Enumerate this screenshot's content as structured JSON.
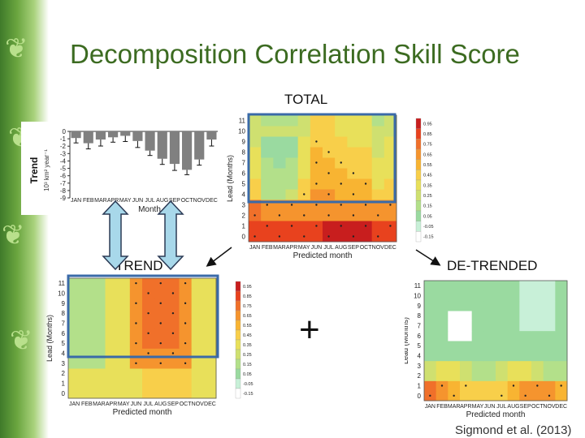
{
  "slide": {
    "title": "Decomposition Correlation Skill Score",
    "label_total": "TOTAL",
    "label_trend": "TREND",
    "label_detrended": "DE-TRENDED",
    "plus": "+",
    "citation": "Sigmond et al. (2013)"
  },
  "months": [
    "JAN",
    "FEB",
    "MAR",
    "APR",
    "MAY",
    "JUN",
    "JUL",
    "AUG",
    "SEP",
    "OCT",
    "NOV",
    "DEC"
  ],
  "trend_chart": {
    "ylabel": "Trend",
    "yunit": "10³ km² year⁻¹",
    "xlabel": "Month",
    "ylim": [
      -9,
      0
    ],
    "yticks": [
      "0",
      "-1",
      "-2",
      "-3",
      "-4",
      "-5",
      "-6",
      "-7",
      "-8",
      "-9"
    ],
    "values": [
      -0.9,
      -1.6,
      -1.1,
      -0.8,
      -0.6,
      -1.3,
      -2.6,
      -3.7,
      -4.4,
      -5.2,
      -3.8,
      -1.1
    ],
    "bar_color": "#808080"
  },
  "maps": {
    "ylabel": "Lead (Months)",
    "xlabel": "Predicted month",
    "lead_ticks": [
      "0",
      "1",
      "2",
      "3",
      "4",
      "5",
      "6",
      "7",
      "8",
      "9",
      "10",
      "11"
    ],
    "colorbar_ticks": [
      "0.95",
      "0.85",
      "0.75",
      "0.65",
      "0.55",
      "0.45",
      "0.35",
      "0.25",
      "0.15",
      "0.05",
      "-0.05",
      "-0.15"
    ]
  },
  "colors": {
    "title": "#3c6b21",
    "box": "#3a6aa8",
    "arrow_fill": "#a8d8ea"
  }
}
